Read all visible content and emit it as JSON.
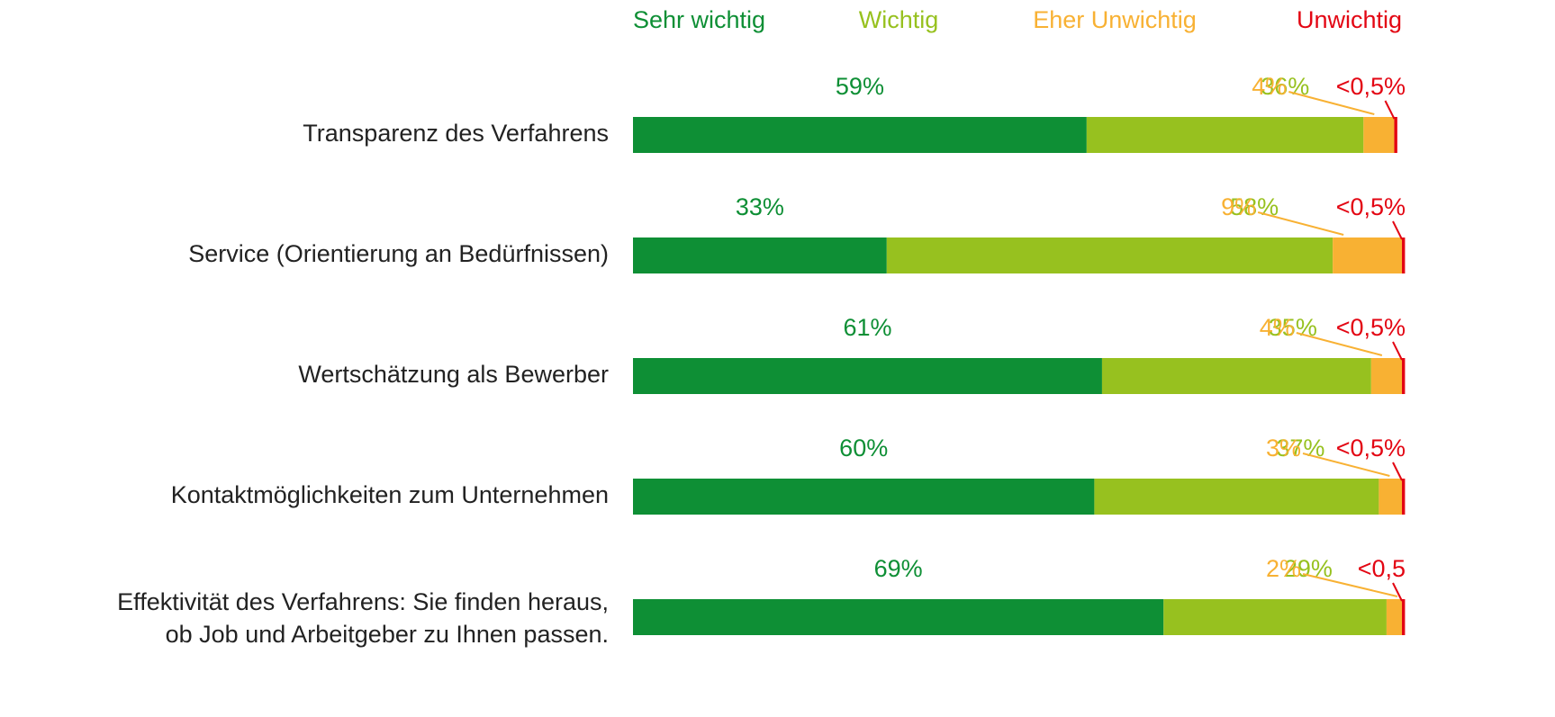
{
  "chart_data": {
    "type": "stacked-bar-horizontal",
    "categories": [
      "Transparenz des Verfahrens",
      "Service (Orientierung an Bedürfnissen)",
      "Wertschätzung als Bewerber",
      "Kontaktmöglichkeiten zum Unternehmen",
      "Effektivität des Verfahrens: Sie finden heraus,\nob Job und Arbeitgeber zu Ihnen passen."
    ],
    "series": [
      {
        "name": "Sehr wichtig",
        "color": "#0e8f35",
        "values": [
          59,
          33,
          61,
          60,
          69
        ],
        "value_labels": [
          "59%",
          "33%",
          "61%",
          "60%",
          "69%"
        ]
      },
      {
        "name": "Wichtig",
        "color": "#97c11f",
        "values": [
          36,
          58,
          35,
          37,
          29
        ],
        "value_labels": [
          "36%",
          "58%",
          "35%",
          "37%",
          "29%"
        ]
      },
      {
        "name": "Eher Unwichtig",
        "color": "#f8b133",
        "values": [
          4,
          9,
          4,
          3,
          2
        ],
        "value_labels": [
          "4%",
          "9%",
          "4%",
          "3%",
          "2%"
        ]
      },
      {
        "name": "Unwichtig",
        "color": "#e30613",
        "values": [
          0.4,
          0.4,
          0.4,
          0.4,
          0.4
        ],
        "value_labels": [
          "<0,5%",
          "<0,5%",
          "<0,5%",
          "<0,5%",
          "<0,5"
        ]
      }
    ],
    "xlim": [
      0,
      100
    ]
  }
}
